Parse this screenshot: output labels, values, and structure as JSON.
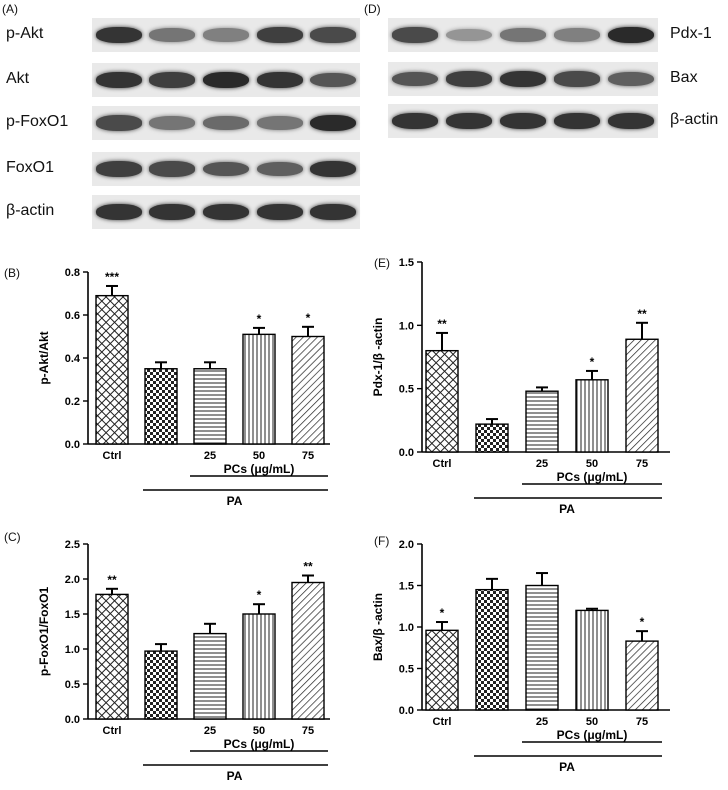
{
  "panels": {
    "A": "(A)",
    "B": "(B)",
    "C": "(C)",
    "D": "(D)",
    "E": "(E)",
    "F": "(F)"
  },
  "blots_left": {
    "labels": [
      "p-Akt",
      "Akt",
      "p-FoxO1",
      "FoxO1",
      "β-actin"
    ],
    "intensity": [
      [
        0.85,
        0.55,
        0.5,
        0.8,
        0.75
      ],
      [
        0.85,
        0.8,
        0.9,
        0.85,
        0.7
      ],
      [
        0.75,
        0.55,
        0.6,
        0.55,
        0.9
      ],
      [
        0.8,
        0.75,
        0.7,
        0.65,
        0.85
      ],
      [
        0.85,
        0.85,
        0.85,
        0.85,
        0.85
      ]
    ]
  },
  "blots_right": {
    "labels": [
      "Pdx-1",
      "Bax",
      "β-actin"
    ],
    "intensity": [
      [
        0.75,
        0.4,
        0.55,
        0.5,
        0.9
      ],
      [
        0.7,
        0.8,
        0.85,
        0.75,
        0.65
      ],
      [
        0.85,
        0.85,
        0.85,
        0.85,
        0.85
      ]
    ]
  },
  "x_axis": {
    "ctrl_label": "Ctrl",
    "dose_labels": [
      "25",
      "50",
      "75"
    ],
    "pcs_label": "PCs (μg/mL)",
    "pa_label": "PA"
  },
  "chart_data": [
    {
      "id": "B",
      "type": "bar",
      "ylabel": "p-Akt/Akt",
      "ylim": [
        0,
        0.8
      ],
      "yticks": [
        "0.0",
        "0.2",
        "0.4",
        "0.6",
        "0.8"
      ],
      "values": [
        0.69,
        0.35,
        0.35,
        0.51,
        0.5
      ],
      "errors": [
        0.045,
        0.03,
        0.03,
        0.03,
        0.045
      ],
      "significance": [
        "***",
        "",
        "",
        "*",
        "*"
      ]
    },
    {
      "id": "E",
      "type": "bar",
      "ylabel": "Pdx-1/β -actin",
      "ylim": [
        0,
        1.5
      ],
      "yticks": [
        "0.0",
        "0.5",
        "1.0",
        "1.5"
      ],
      "values": [
        0.8,
        0.22,
        0.48,
        0.57,
        0.89
      ],
      "errors": [
        0.14,
        0.04,
        0.03,
        0.07,
        0.13
      ],
      "significance": [
        "**",
        "",
        "",
        "*",
        "**"
      ]
    },
    {
      "id": "C",
      "type": "bar",
      "ylabel": "p-FoxO1/FoxO1",
      "ylim": [
        0,
        2.5
      ],
      "yticks": [
        "0.0",
        "0.5",
        "1.0",
        "1.5",
        "2.0",
        "2.5"
      ],
      "values": [
        1.78,
        0.97,
        1.22,
        1.5,
        1.95
      ],
      "errors": [
        0.08,
        0.1,
        0.14,
        0.14,
        0.1
      ],
      "significance": [
        "**",
        "",
        "",
        "*",
        "**"
      ]
    },
    {
      "id": "F",
      "type": "bar",
      "ylabel": "Bax/β -actin",
      "ylim": [
        0,
        2.0
      ],
      "yticks": [
        "0.0",
        "0.5",
        "1.0",
        "1.5",
        "2.0"
      ],
      "values": [
        0.96,
        1.45,
        1.5,
        1.2,
        0.83
      ],
      "errors": [
        0.1,
        0.13,
        0.15,
        0.02,
        0.12
      ],
      "significance": [
        "*",
        "",
        "",
        "",
        "*"
      ]
    }
  ]
}
